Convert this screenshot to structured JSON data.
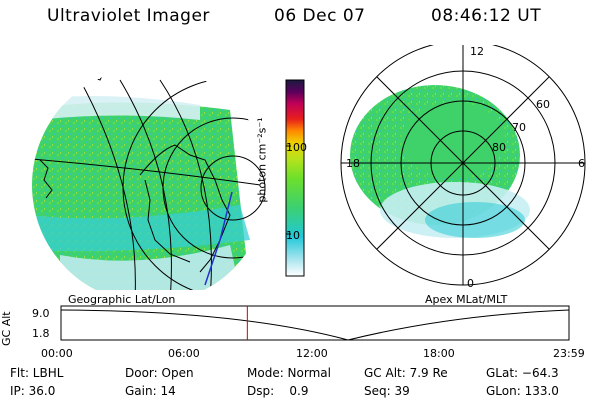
{
  "header": {
    "title": "Ultraviolet Imager",
    "date": "06 Dec 07",
    "time": "08:46:12 UT"
  },
  "geo_panel": {
    "label": "Geographic Lat/Lon"
  },
  "polar_panel": {
    "label": "Apex MLat/MLT",
    "mlt_labels": {
      "top": "12",
      "left": "18",
      "right": "6",
      "bottom": "0"
    },
    "lat_labels": [
      "60",
      "70",
      "80"
    ]
  },
  "colorbar": {
    "label": "photon cm⁻²s⁻¹",
    "ticks": [
      "100",
      "10"
    ],
    "scale": "log",
    "colors": [
      "#ffffff",
      "#aee6f0",
      "#22c8d8",
      "#3cd070",
      "#6ee02a",
      "#b8e21c",
      "#f0d000",
      "#ff8a00",
      "#e8201c",
      "#c00058",
      "#5a005c",
      "#1a1a40"
    ]
  },
  "timeline": {
    "ylabel": "GC Alt",
    "yticks": [
      "9.0",
      "1.8"
    ],
    "xticks": [
      "00:00",
      "06:00",
      "12:00",
      "18:00",
      "23:59"
    ],
    "marker_fraction": 0.3668,
    "marker_color": "#cc0000"
  },
  "info": {
    "row1": [
      "Flt: LBHL",
      "Door: Open",
      "Mode: Normal",
      "GC Alt: 7.9 Re",
      "GLat: −64.3"
    ],
    "row2": [
      "IP: 36.0",
      "Gain: 14",
      "Dsp:    0.9",
      "Seq: 39",
      "GLon: 133.0"
    ]
  },
  "colors": {
    "aurora_green": "#3fd26a",
    "aurora_cyan": "#38cfd6",
    "aurora_light": "#c8eef4",
    "coast": "#000000",
    "terminator": "#2233cc"
  }
}
